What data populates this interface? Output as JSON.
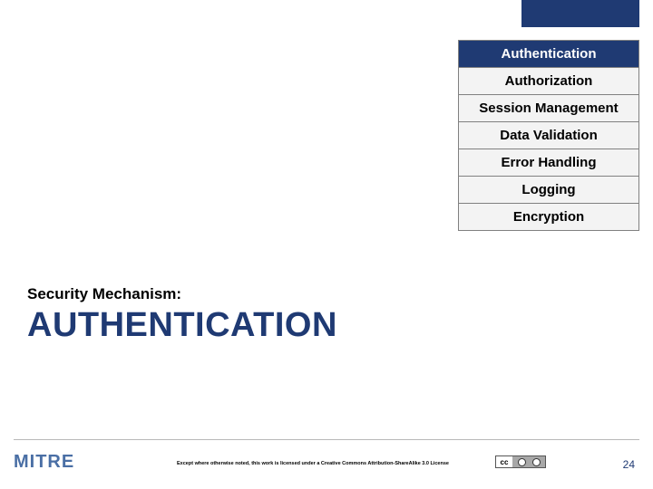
{
  "colors": {
    "brand_blue": "#1f3a73",
    "list_bg": "#f3f3f3",
    "list_border": "#808080",
    "footer_line": "#b8b8b8",
    "logo_blue": "#4a6fa5",
    "logo_dark": "#2a2a2a",
    "text": "#000000",
    "white": "#ffffff"
  },
  "list": {
    "items": [
      {
        "label": "Authentication",
        "active": true
      },
      {
        "label": "Authorization",
        "active": false
      },
      {
        "label": "Session Management",
        "active": false
      },
      {
        "label": "Data Validation",
        "active": false
      },
      {
        "label": "Error Handling",
        "active": false
      },
      {
        "label": "Logging",
        "active": false
      },
      {
        "label": "Encryption",
        "active": false
      }
    ]
  },
  "heading": {
    "subtitle": "Security Mechanism:",
    "title": "AUTHENTICATION"
  },
  "footer": {
    "logo_main": "MITRE",
    "license_text": "Except where otherwise noted, this work is licensed under a Creative Commons Attribution-ShareAlike 3.0 License",
    "cc_label": "cc",
    "page_number": "24"
  },
  "layout": {
    "slide_width": 720,
    "slide_height": 540,
    "title_fontsize": 38,
    "subtitle_fontsize": 17,
    "list_fontsize": 15
  }
}
